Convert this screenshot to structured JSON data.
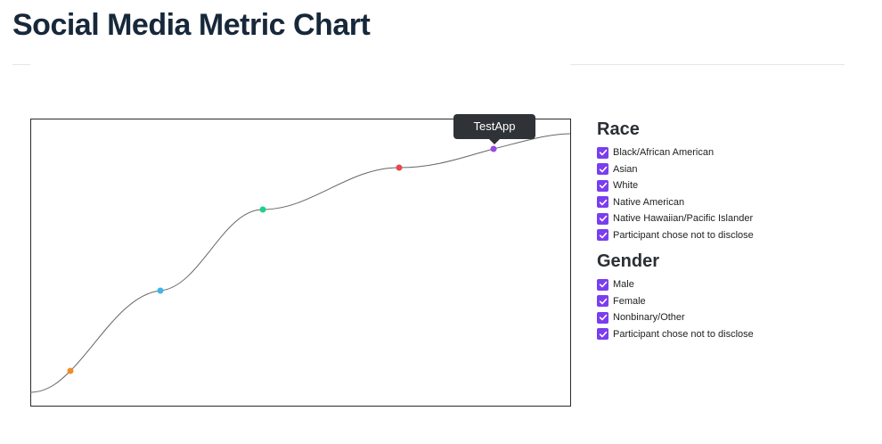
{
  "page": {
    "title": "Social Media Metric Chart"
  },
  "tooltip": {
    "text": "TestApp"
  },
  "chart_data": {
    "type": "line",
    "series": [
      {
        "points": [
          {
            "color": "#f28c28"
          },
          {
            "color": "#3fb6e8"
          },
          {
            "color": "#1fcf8a"
          },
          {
            "color": "#e5484d"
          },
          {
            "color": "#9b46e5"
          }
        ]
      }
    ]
  },
  "filters": {
    "race": {
      "title": "Race",
      "options": [
        {
          "label": "Black/African American",
          "checked": true
        },
        {
          "label": "Asian",
          "checked": true
        },
        {
          "label": "White",
          "checked": true
        },
        {
          "label": "Native American",
          "checked": true
        },
        {
          "label": "Native Hawaiian/Pacific Islander",
          "checked": true
        },
        {
          "label": "Participant chose not to disclose",
          "checked": true
        }
      ]
    },
    "gender": {
      "title": "Gender",
      "options": [
        {
          "label": "Male",
          "checked": true
        },
        {
          "label": "Female",
          "checked": true
        },
        {
          "label": "Nonbinary/Other",
          "checked": true
        },
        {
          "label": "Participant chose not to disclose",
          "checked": true
        }
      ]
    }
  },
  "colors": {
    "accent": "#7a3df0",
    "line": "#666666"
  }
}
